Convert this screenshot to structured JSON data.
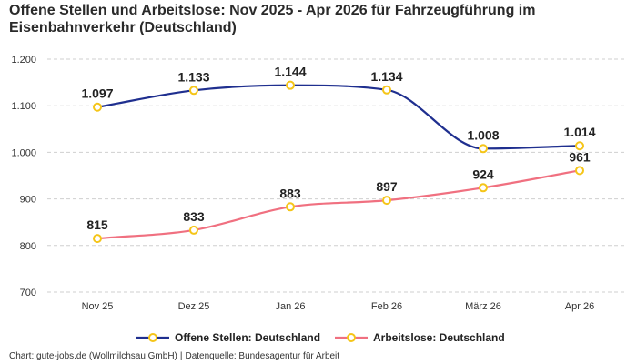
{
  "title": "Offene Stellen und Arbeitslose: Nov 2025 - Apr 2026 für Fahrzeugführung im Eisenbahnverkehr (Deutschland)",
  "source": {
    "chart_credit": "Chart: gute-jobs.de (Wollmilchsau GmbH)",
    "separator": "|",
    "data_source": "Datenquelle: Bundesagentur für Arbeit"
  },
  "chart_data": {
    "type": "line",
    "title": "Offene Stellen und Arbeitslose: Nov 2025 - Apr 2026 für Fahrzeugführung im Eisenbahnverkehr (Deutschland)",
    "categories": [
      "Nov 25",
      "Dez 25",
      "Jan 26",
      "Feb 26",
      "März 26",
      "Apr 26"
    ],
    "series": [
      {
        "name": "Offene Stellen: Deutschland",
        "values": [
          1097,
          1133,
          1144,
          1134,
          1008,
          1014
        ],
        "labels": [
          "1.097",
          "1.133",
          "1.144",
          "1.134",
          "1.008",
          "1.014"
        ],
        "color": "#1f2f8f"
      },
      {
        "name": "Arbeitslose: Deutschland",
        "values": [
          815,
          833,
          883,
          897,
          924,
          961
        ],
        "labels": [
          "815",
          "833",
          "883",
          "897",
          "924",
          "961"
        ],
        "color": "#f07080"
      }
    ],
    "marker_color": "#f5c518",
    "y_ticks": [
      700,
      800,
      900,
      1000,
      1100,
      1200
    ],
    "y_tick_labels": [
      "700",
      "800",
      "900",
      "1.000",
      "1.100",
      "1.200"
    ],
    "ylim": [
      700,
      1200
    ],
    "xlabel": "",
    "ylabel": "",
    "grid": "horizontal dashed",
    "legend_position": "bottom"
  }
}
